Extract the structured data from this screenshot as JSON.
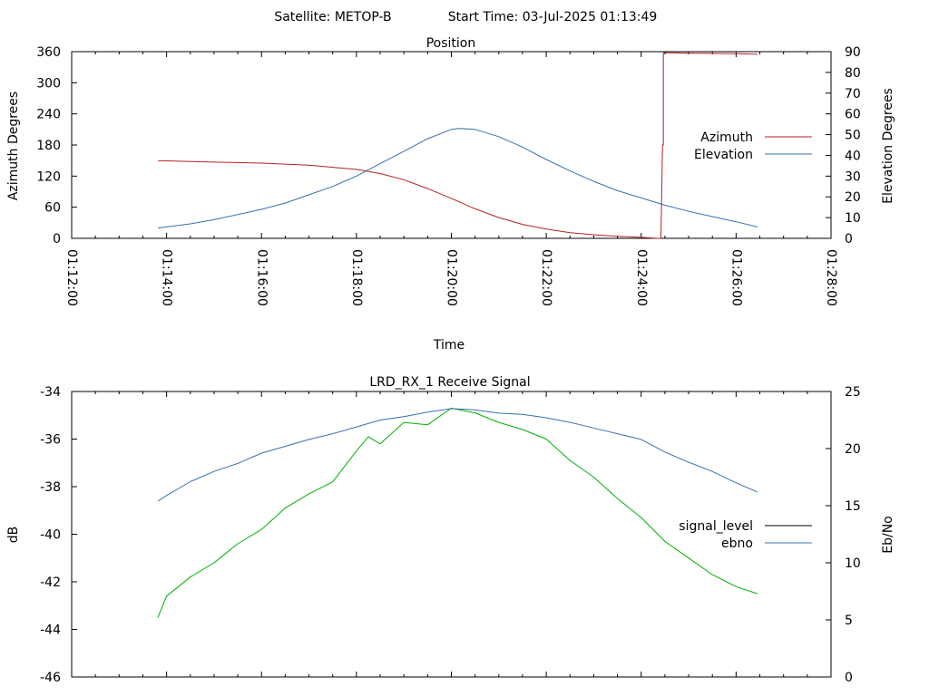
{
  "suptitle": {
    "satellite": "Satellite: METOP-B",
    "start_time": "Start Time: 03-Jul-2025 01:13:49"
  },
  "colors": {
    "azimuth": "#b22222",
    "elevation": "#3a6fb0",
    "signal_level": "#000000",
    "signal_trace": "#00b000",
    "ebno": "#3a6fb0"
  },
  "chart_data": [
    {
      "type": "line",
      "title": "Position",
      "xlabel": "Time",
      "ylabel": "Azimuth Degrees",
      "y2label": "Elevation Degrees",
      "xlim": [
        "01:12:00",
        "01:28:00"
      ],
      "xticks": [
        "01:12:00",
        "01:14:00",
        "01:16:00",
        "01:18:00",
        "01:20:00",
        "01:22:00",
        "01:24:00",
        "01:26:00",
        "01:28:00"
      ],
      "ylim": [
        0,
        360
      ],
      "yticks": [
        0,
        60,
        120,
        180,
        240,
        300,
        360
      ],
      "y2lim": [
        0,
        90
      ],
      "y2ticks": [
        0,
        10,
        20,
        30,
        40,
        50,
        60,
        70,
        80,
        90
      ],
      "legend_position": "right",
      "grid": false,
      "series": [
        {
          "name": "Azimuth",
          "axis": "left",
          "x": [
            "01:13:49",
            "01:15:00",
            "01:16:00",
            "01:17:00",
            "01:18:00",
            "01:18:30",
            "01:19:00",
            "01:19:30",
            "01:20:00",
            "01:20:30",
            "01:21:00",
            "01:21:30",
            "01:22:00",
            "01:22:30",
            "01:23:00",
            "01:23:30",
            "01:24:00",
            "01:24:20",
            "01:24:25",
            "01:24:27",
            "01:24:28",
            "01:24:28",
            "01:24:29",
            "01:25:00",
            "01:26:00",
            "01:26:27"
          ],
          "values": [
            150,
            147,
            145,
            141,
            133,
            125,
            113,
            96,
            77,
            57,
            40,
            27,
            18,
            11,
            7,
            4,
            2,
            0,
            0,
            180,
            180,
            357,
            358,
            357,
            356,
            355
          ]
        },
        {
          "name": "Elevation",
          "axis": "right",
          "x": [
            "01:13:49",
            "01:14:30",
            "01:15:00",
            "01:15:30",
            "01:16:00",
            "01:16:30",
            "01:17:00",
            "01:17:30",
            "01:18:00",
            "01:18:30",
            "01:19:00",
            "01:19:30",
            "01:20:00",
            "01:20:10",
            "01:20:30",
            "01:21:00",
            "01:21:30",
            "01:22:00",
            "01:22:30",
            "01:23:00",
            "01:23:30",
            "01:24:00",
            "01:24:30",
            "01:25:00",
            "01:25:30",
            "01:26:00",
            "01:26:27"
          ],
          "values": [
            5,
            7,
            9,
            11.5,
            14,
            17,
            21,
            25,
            30,
            36,
            42,
            48,
            52.5,
            53,
            52.5,
            49,
            44,
            38,
            32.5,
            27.5,
            23,
            19.5,
            16,
            13,
            10.5,
            8,
            5.5
          ]
        }
      ]
    },
    {
      "type": "line",
      "title": "LRD_RX_1 Receive Signal",
      "xlabel": "",
      "ylabel": "dB",
      "y2label": "Eb/No",
      "xlim": [
        "01:12:00",
        "01:28:00"
      ],
      "ylim": [
        -46,
        -34
      ],
      "yticks": [
        -46,
        -44,
        -42,
        -40,
        -38,
        -36,
        -34
      ],
      "y2lim": [
        0,
        25
      ],
      "y2ticks": [
        0,
        5,
        10,
        15,
        20,
        25
      ],
      "legend_position": "right",
      "grid": false,
      "series": [
        {
          "name": "signal_level",
          "axis": "left",
          "x": [
            "01:13:49",
            "01:14:00",
            "01:14:30",
            "01:15:00",
            "01:15:30",
            "01:16:00",
            "01:16:30",
            "01:17:00",
            "01:17:30",
            "01:18:00",
            "01:18:15",
            "01:18:30",
            "01:19:00",
            "01:19:30",
            "01:20:00",
            "01:20:30",
            "01:21:00",
            "01:21:30",
            "01:22:00",
            "01:22:30",
            "01:23:00",
            "01:23:30",
            "01:24:00",
            "01:24:30",
            "01:25:00",
            "01:25:30",
            "01:26:00",
            "01:26:27"
          ],
          "values": [
            -43.5,
            -42.6,
            -41.8,
            -41.2,
            -40.4,
            -39.8,
            -38.9,
            -38.3,
            -37.8,
            -36.5,
            -35.9,
            -36.2,
            -35.3,
            -35.4,
            -34.7,
            -34.9,
            -35.3,
            -35.6,
            -36.0,
            -36.9,
            -37.6,
            -38.5,
            -39.3,
            -40.3,
            -41.0,
            -41.7,
            -42.2,
            -42.5
          ]
        },
        {
          "name": "ebno",
          "axis": "right",
          "x": [
            "01:13:49",
            "01:14:00",
            "01:14:30",
            "01:15:00",
            "01:15:30",
            "01:16:00",
            "01:16:30",
            "01:17:00",
            "01:17:30",
            "01:18:00",
            "01:18:30",
            "01:19:00",
            "01:19:30",
            "01:20:00",
            "01:20:30",
            "01:21:00",
            "01:21:30",
            "01:22:00",
            "01:22:30",
            "01:23:00",
            "01:23:30",
            "01:24:00",
            "01:24:30",
            "01:25:00",
            "01:25:30",
            "01:26:00",
            "01:26:27"
          ],
          "values": [
            15.4,
            15.9,
            17.1,
            18.0,
            18.7,
            19.6,
            20.2,
            20.8,
            21.3,
            21.9,
            22.5,
            22.8,
            23.2,
            23.5,
            23.4,
            23.1,
            23.0,
            22.7,
            22.3,
            21.8,
            21.3,
            20.8,
            19.7,
            18.8,
            18.0,
            17.0,
            16.2
          ]
        }
      ]
    }
  ]
}
